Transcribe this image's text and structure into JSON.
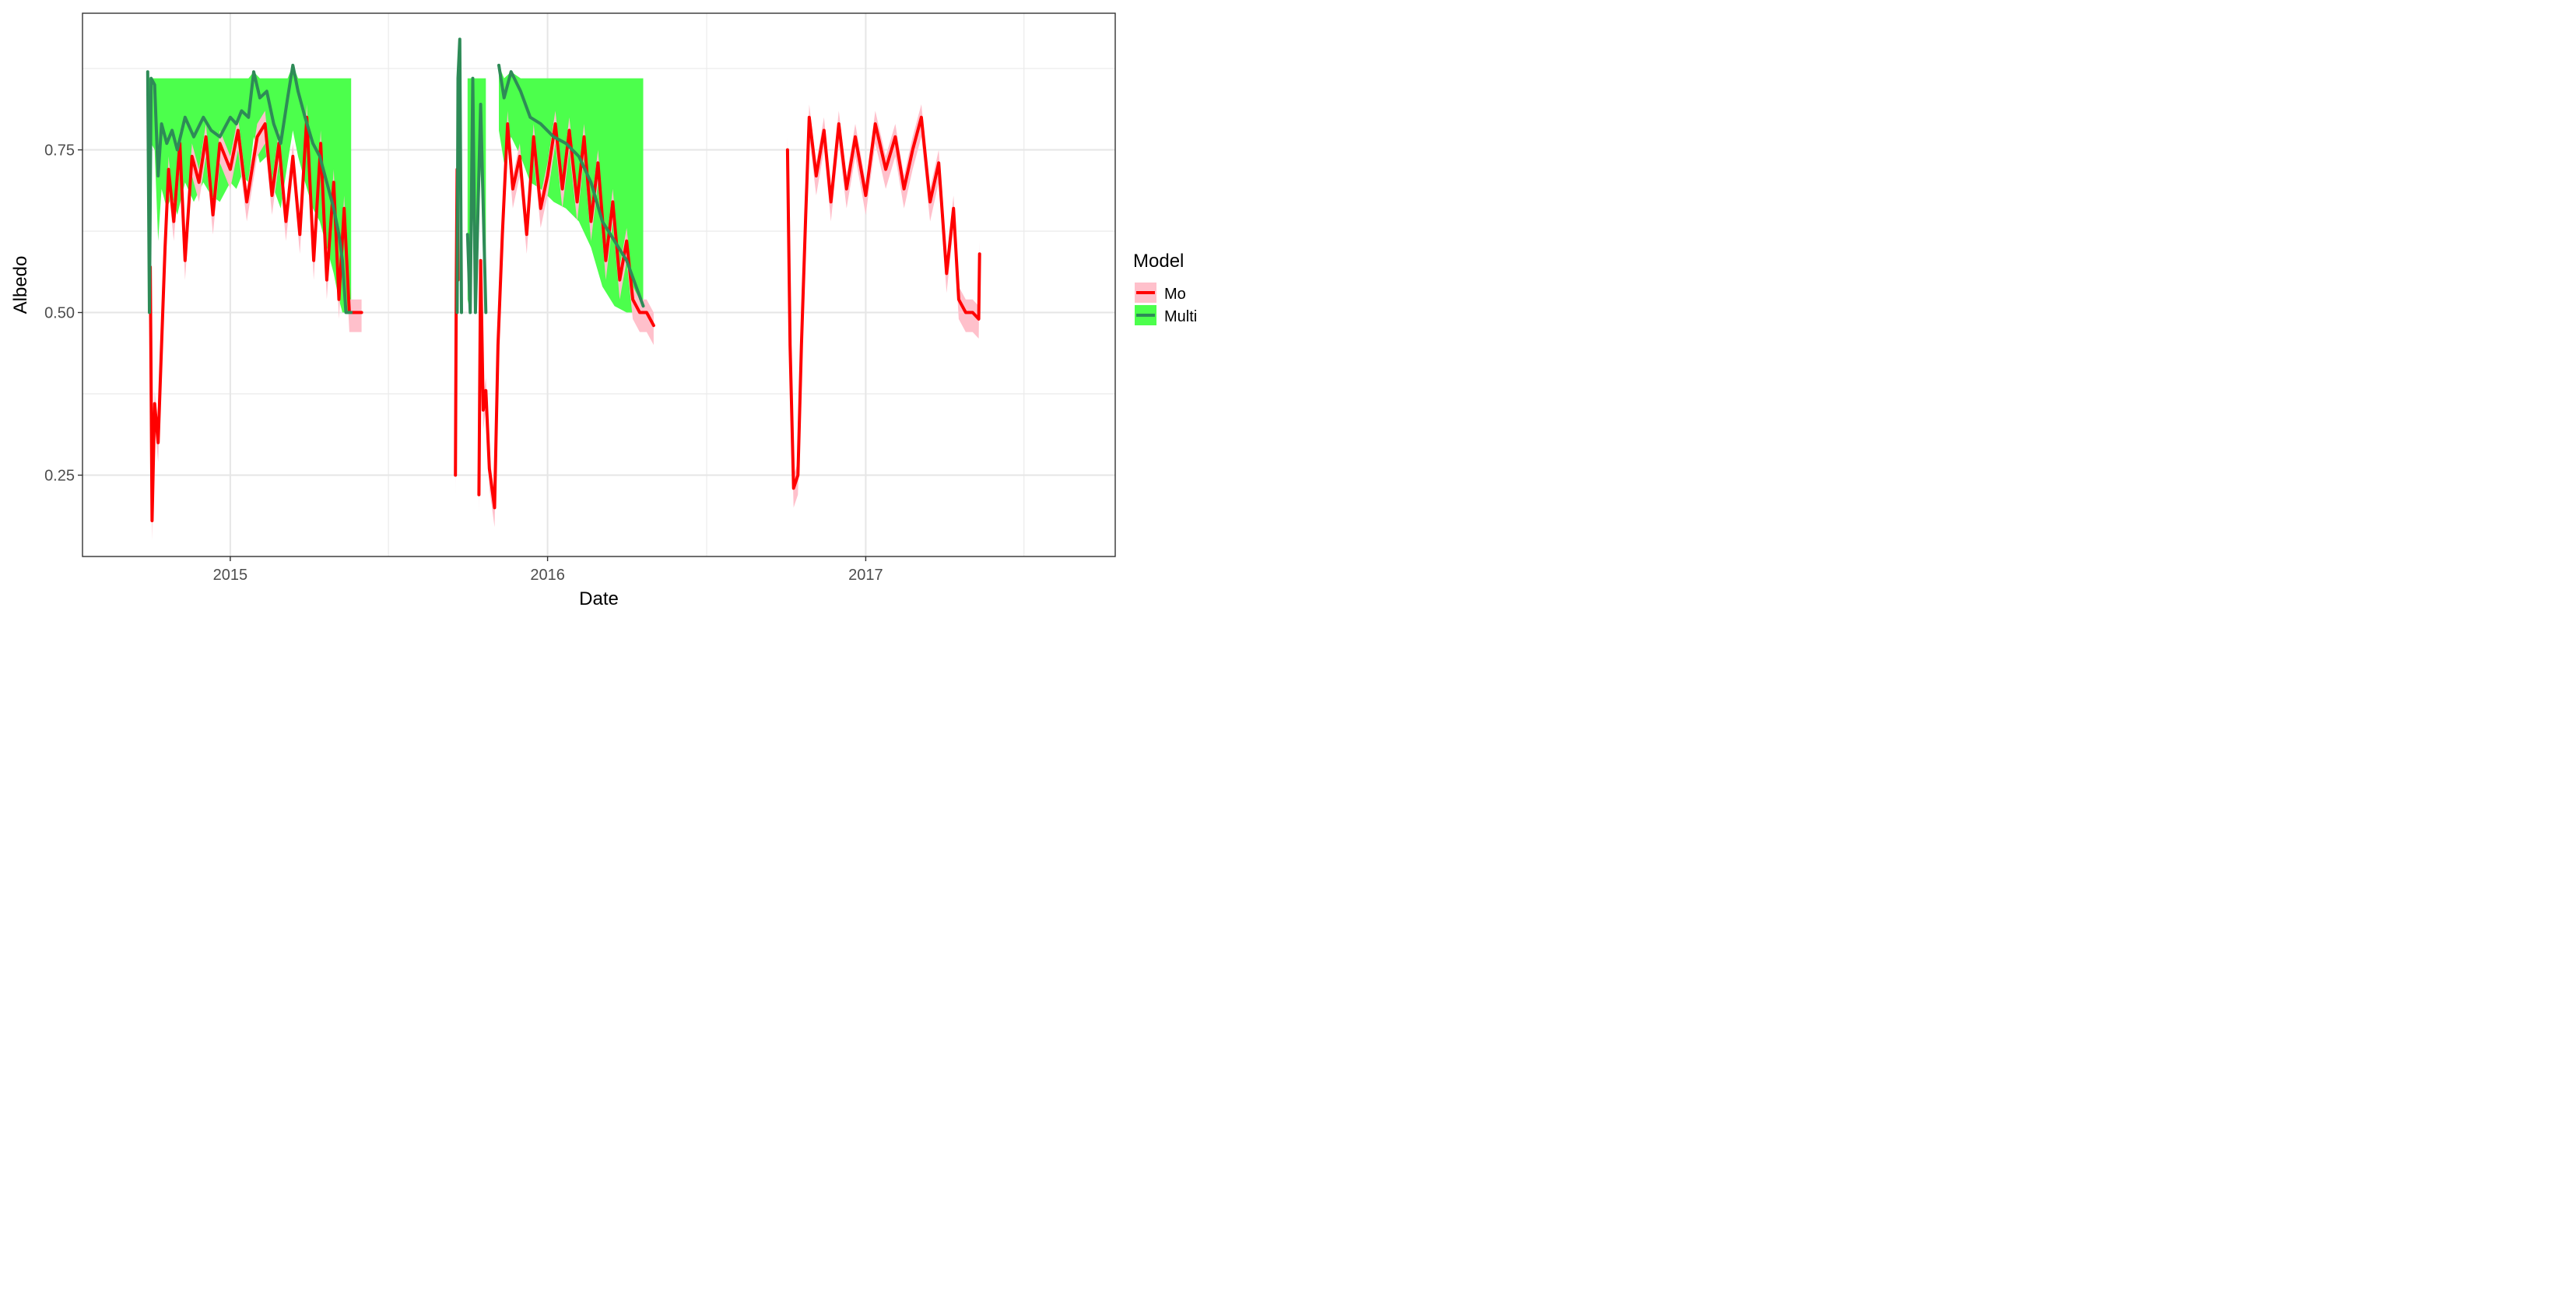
{
  "chart_data": {
    "type": "line",
    "xlabel": "Date",
    "ylabel": "Albedo",
    "x_ticks": [
      "2015",
      "2016",
      "2017"
    ],
    "y_ticks": [
      "0.25",
      "0.50",
      "0.75"
    ],
    "xlim": [
      "2014-07-15",
      "2017-10-15"
    ],
    "ylim": [
      0.125,
      0.96
    ],
    "grid": true,
    "legend": {
      "title": "Model",
      "position": "right",
      "entries": [
        {
          "label": "Mo",
          "line_color": "#ff0000",
          "fill_color": "#ffc0cb"
        },
        {
          "label": "Multi",
          "line_color": "#2e8b57",
          "fill_color": "#4cff4c"
        }
      ]
    },
    "series": [
      {
        "name": "Mo",
        "line_color": "#ff0000",
        "band_color": "#ffc0cb",
        "segments": [
          [
            [
              "2014-10-01",
              0.57
            ],
            [
              "2014-10-03",
              0.18
            ],
            [
              "2014-10-06",
              0.36
            ],
            [
              "2014-10-10",
              0.3
            ],
            [
              "2014-10-14",
              0.45
            ],
            [
              "2014-10-18",
              0.6
            ],
            [
              "2014-10-22",
              0.72
            ],
            [
              "2014-10-28",
              0.64
            ],
            [
              "2014-11-04",
              0.76
            ],
            [
              "2014-11-10",
              0.58
            ],
            [
              "2014-11-18",
              0.74
            ],
            [
              "2014-11-26",
              0.7
            ],
            [
              "2014-12-04",
              0.77
            ],
            [
              "2014-12-12",
              0.65
            ],
            [
              "2014-12-20",
              0.76
            ],
            [
              "2015-01-01",
              0.72
            ],
            [
              "2015-01-10",
              0.78
            ],
            [
              "2015-01-20",
              0.67
            ],
            [
              "2015-02-01",
              0.77
            ],
            [
              "2015-02-10",
              0.79
            ],
            [
              "2015-02-18",
              0.68
            ],
            [
              "2015-02-26",
              0.76
            ],
            [
              "2015-03-06",
              0.64
            ],
            [
              "2015-03-14",
              0.74
            ],
            [
              "2015-03-22",
              0.62
            ],
            [
              "2015-03-30",
              0.8
            ],
            [
              "2015-04-07",
              0.58
            ],
            [
              "2015-04-15",
              0.76
            ],
            [
              "2015-04-22",
              0.55
            ],
            [
              "2015-04-30",
              0.7
            ],
            [
              "2015-05-06",
              0.52
            ],
            [
              "2015-05-12",
              0.66
            ],
            [
              "2015-05-18",
              0.5
            ],
            [
              "2015-05-24",
              0.5
            ],
            [
              "2015-06-01",
              0.5
            ]
          ],
          [
            [
              "2015-09-17",
              0.25
            ],
            [
              "2015-09-18",
              0.55
            ],
            [
              "2015-09-19",
              0.72
            ],
            [
              "2015-09-20",
              0.55
            ]
          ],
          [
            [
              "2015-10-14",
              0.22
            ],
            [
              "2015-10-16",
              0.58
            ],
            [
              "2015-10-19",
              0.35
            ],
            [
              "2015-10-22",
              0.38
            ],
            [
              "2015-10-26",
              0.26
            ],
            [
              "2015-11-01",
              0.2
            ],
            [
              "2015-11-05",
              0.45
            ],
            [
              "2015-11-10",
              0.62
            ],
            [
              "2015-11-16",
              0.79
            ],
            [
              "2015-11-22",
              0.69
            ],
            [
              "2015-11-30",
              0.74
            ],
            [
              "2015-12-08",
              0.62
            ],
            [
              "2015-12-16",
              0.77
            ],
            [
              "2015-12-24",
              0.66
            ],
            [
              "2016-01-01",
              0.71
            ],
            [
              "2016-01-10",
              0.79
            ],
            [
              "2016-01-18",
              0.69
            ],
            [
              "2016-01-26",
              0.78
            ],
            [
              "2016-02-04",
              0.67
            ],
            [
              "2016-02-12",
              0.77
            ],
            [
              "2016-02-20",
              0.64
            ],
            [
              "2016-02-28",
              0.73
            ],
            [
              "2016-03-08",
              0.58
            ],
            [
              "2016-03-16",
              0.67
            ],
            [
              "2016-03-24",
              0.55
            ],
            [
              "2016-04-01",
              0.61
            ],
            [
              "2016-04-08",
              0.52
            ],
            [
              "2016-04-16",
              0.5
            ],
            [
              "2016-04-24",
              0.5
            ],
            [
              "2016-05-02",
              0.48
            ]
          ],
          [
            [
              "2016-10-03",
              0.75
            ],
            [
              "2016-10-06",
              0.45
            ],
            [
              "2016-10-10",
              0.23
            ],
            [
              "2016-10-15",
              0.25
            ],
            [
              "2016-10-19",
              0.45
            ],
            [
              "2016-10-24",
              0.65
            ],
            [
              "2016-10-28",
              0.8
            ],
            [
              "2016-11-05",
              0.71
            ],
            [
              "2016-11-14",
              0.78
            ],
            [
              "2016-11-22",
              0.67
            ],
            [
              "2016-12-01",
              0.79
            ],
            [
              "2016-12-10",
              0.69
            ],
            [
              "2016-12-20",
              0.77
            ],
            [
              "2017-01-01",
              0.68
            ],
            [
              "2017-01-12",
              0.79
            ],
            [
              "2017-01-24",
              0.72
            ],
            [
              "2017-02-04",
              0.77
            ],
            [
              "2017-02-14",
              0.69
            ],
            [
              "2017-02-24",
              0.75
            ],
            [
              "2017-03-06",
              0.8
            ],
            [
              "2017-03-16",
              0.67
            ],
            [
              "2017-03-26",
              0.73
            ],
            [
              "2017-04-04",
              0.56
            ],
            [
              "2017-04-12",
              0.66
            ],
            [
              "2017-04-18",
              0.52
            ],
            [
              "2017-04-26",
              0.5
            ],
            [
              "2017-05-04",
              0.5
            ],
            [
              "2017-05-11",
              0.49
            ],
            [
              "2017-05-12",
              0.59
            ]
          ]
        ]
      },
      {
        "name": "Multi",
        "line_color": "#2e8b57",
        "band_color": "#4cff4c",
        "segments": [
          [
            [
              "2014-09-28",
              0.87
            ],
            [
              "2014-09-30",
              0.5
            ],
            [
              "2014-10-02",
              0.86
            ],
            [
              "2014-10-06",
              0.85
            ],
            [
              "2014-10-10",
              0.71
            ],
            [
              "2014-10-14",
              0.79
            ],
            [
              "2014-10-20",
              0.76
            ],
            [
              "2014-10-26",
              0.78
            ],
            [
              "2014-11-01",
              0.75
            ],
            [
              "2014-11-10",
              0.8
            ],
            [
              "2014-11-20",
              0.77
            ],
            [
              "2014-12-01",
              0.8
            ],
            [
              "2014-12-10",
              0.78
            ],
            [
              "2014-12-20",
              0.77
            ],
            [
              "2015-01-01",
              0.8
            ],
            [
              "2015-01-08",
              0.79
            ],
            [
              "2015-01-14",
              0.81
            ],
            [
              "2015-01-22",
              0.8
            ],
            [
              "2015-01-28",
              0.87
            ],
            [
              "2015-02-04",
              0.83
            ],
            [
              "2015-02-12",
              0.84
            ],
            [
              "2015-02-20",
              0.79
            ],
            [
              "2015-02-28",
              0.76
            ],
            [
              "2015-03-08",
              0.83
            ],
            [
              "2015-03-14",
              0.88
            ],
            [
              "2015-03-20",
              0.84
            ],
            [
              "2015-03-28",
              0.8
            ],
            [
              "2015-04-06",
              0.76
            ],
            [
              "2015-04-14",
              0.74
            ],
            [
              "2015-04-22",
              0.7
            ],
            [
              "2015-04-30",
              0.66
            ],
            [
              "2015-05-06",
              0.62
            ],
            [
              "2015-05-10",
              0.58
            ],
            [
              "2015-05-14",
              0.5
            ],
            [
              "2015-05-20",
              0.5
            ]
          ],
          [
            [
              "2015-09-19",
              0.5
            ],
            [
              "2015-09-20",
              0.86
            ],
            [
              "2015-09-22",
              0.92
            ],
            [
              "2015-09-24",
              0.5
            ]
          ],
          [
            [
              "2015-10-01",
              0.62
            ],
            [
              "2015-10-04",
              0.5
            ],
            [
              "2015-10-07",
              0.86
            ],
            [
              "2015-10-10",
              0.5
            ],
            [
              "2015-10-16",
              0.82
            ],
            [
              "2015-10-22",
              0.5
            ]
          ],
          [
            [
              "2015-11-06",
              0.88
            ],
            [
              "2015-11-12",
              0.83
            ],
            [
              "2015-11-20",
              0.87
            ],
            [
              "2015-12-01",
              0.84
            ],
            [
              "2015-12-12",
              0.8
            ],
            [
              "2015-12-24",
              0.79
            ],
            [
              "2016-01-08",
              0.77
            ],
            [
              "2016-01-22",
              0.76
            ],
            [
              "2016-02-06",
              0.74
            ],
            [
              "2016-02-20",
              0.7
            ],
            [
              "2016-03-04",
              0.64
            ],
            [
              "2016-03-18",
              0.61
            ],
            [
              "2016-04-01",
              0.58
            ],
            [
              "2016-04-20",
              0.51
            ]
          ]
        ]
      }
    ]
  }
}
